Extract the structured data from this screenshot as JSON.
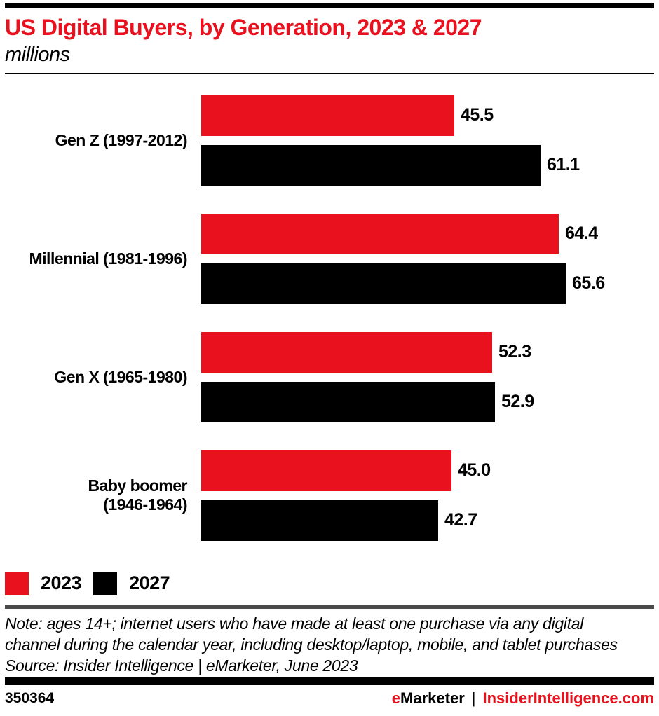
{
  "header": {
    "title": "US Digital Buyers, by Generation, 2023 & 2027",
    "subtitle": "millions"
  },
  "colors": {
    "accent": "#E8111D",
    "bar_2027": "#000000",
    "divider_gray": "#4A4A4A"
  },
  "chart_data": {
    "type": "bar",
    "orientation": "horizontal",
    "title": "US Digital Buyers, by Generation, 2023 & 2027",
    "units": "millions",
    "categories": [
      "Gen Z (1997-2012)",
      "Millennial (1981-1996)",
      "Gen X (1965-1980)",
      "Baby boomer\n(1946-1964)"
    ],
    "series": [
      {
        "name": "2023",
        "color": "#E8111D",
        "values": [
          45.5,
          64.4,
          52.3,
          45.0
        ]
      },
      {
        "name": "2027",
        "color": "#000000",
        "values": [
          61.1,
          65.6,
          52.9,
          42.7
        ]
      }
    ],
    "xlim": [
      0,
      66
    ],
    "grid": false,
    "value_labels_shown": true,
    "legend_position": "bottom-left"
  },
  "legend": {
    "items": [
      {
        "label": "2023",
        "color": "#E8111D"
      },
      {
        "label": "2027",
        "color": "#000000"
      }
    ]
  },
  "notes": {
    "note_lines": [
      "Note: ages 14+; internet users who have made at least one purchase via any digital",
      "channel during the calendar year, including desktop/laptop, mobile, and tablet purchases"
    ],
    "source": "Source: Insider Intelligence | eMarketer, June 2023"
  },
  "footer": {
    "chart_id": "350364",
    "brand_first_letter": "e",
    "brand_rest": "Marketer",
    "separator": "|",
    "site": "InsiderIntelligence.com"
  }
}
